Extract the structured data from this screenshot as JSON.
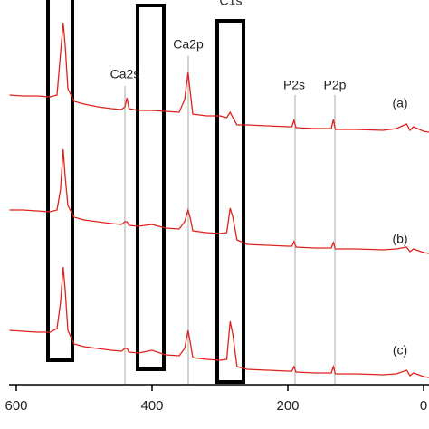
{
  "chart_data": {
    "type": "line",
    "x": [
      610,
      590,
      570,
      550,
      540,
      535,
      531,
      528,
      524,
      515,
      500,
      480,
      460,
      445,
      440,
      437,
      434,
      420,
      400,
      380,
      360,
      352,
      347,
      344,
      340,
      320,
      300,
      290,
      285,
      281,
      275,
      260,
      230,
      200,
      194,
      191,
      188,
      160,
      140,
      136,
      133,
      130,
      100,
      60,
      40,
      25,
      20,
      15,
      0,
      -8
    ],
    "series": [
      {
        "name": "(a)",
        "color": "#e0211d",
        "values": [
          320,
          319,
          319,
          318,
          320,
          365,
          400,
          375,
          327,
          313,
          310,
          307,
          305,
          304,
          307,
          317,
          305,
          303,
          303,
          302,
          301,
          315,
          345,
          325,
          299,
          297,
          297,
          295,
          301,
          295,
          287,
          287,
          286,
          285,
          285,
          292,
          284,
          283,
          283,
          283,
          293,
          282,
          282,
          281,
          283,
          288,
          281,
          285,
          280,
          279
        ]
      },
      {
        "name": "(b)",
        "color": "#e0211d",
        "values": [
          193,
          193,
          192,
          191,
          193,
          215,
          260,
          230,
          198,
          185,
          182,
          180,
          178,
          177,
          180,
          180,
          176,
          175,
          177,
          173,
          172,
          180,
          193,
          185,
          170,
          168,
          167,
          168,
          195,
          185,
          160,
          155,
          154,
          153,
          153,
          158,
          152,
          151,
          151,
          151,
          157,
          150,
          150,
          149,
          150,
          152,
          147,
          150,
          146,
          145
        ]
      },
      {
        "name": "(c)",
        "color": "#e0211d",
        "values": [
          60,
          59,
          58,
          58,
          62,
          90,
          130,
          105,
          60,
          45,
          42,
          40,
          38,
          37,
          40,
          40,
          36,
          35,
          38,
          33,
          32,
          40,
          60,
          48,
          30,
          28,
          27,
          28,
          70,
          55,
          20,
          17,
          16,
          15,
          15,
          20,
          14,
          13,
          13,
          13,
          20,
          12,
          12,
          11,
          12,
          16,
          10,
          13,
          9,
          8
        ]
      }
    ],
    "annotations": [
      "Ca2s",
      "Ca2p",
      "C1s",
      "P2s",
      "P2p"
    ],
    "xlim": [
      610,
      -8
    ],
    "xticks": [
      600,
      400,
      200,
      0
    ],
    "ylim": [
      0,
      425
    ]
  }
}
